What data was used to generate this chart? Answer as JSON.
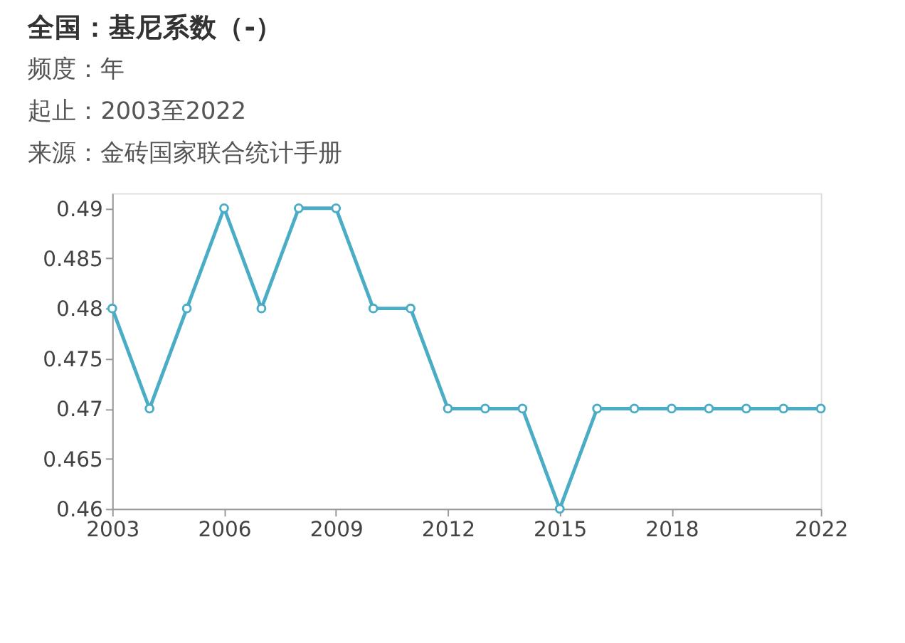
{
  "chart_data": {
    "type": "line",
    "title": "全国：基尼系数（-）",
    "subtitle": [
      "频度：年",
      "起止：2003至2022",
      "来源：金砖国家联合统计手册"
    ],
    "x": [
      2003,
      2004,
      2005,
      2006,
      2007,
      2008,
      2009,
      2010,
      2011,
      2012,
      2013,
      2014,
      2015,
      2016,
      2017,
      2018,
      2019,
      2020,
      2021,
      2022
    ],
    "series": [
      {
        "color": "#4aacc5",
        "values": [
          0.48,
          0.47,
          0.48,
          0.49,
          0.48,
          0.49,
          0.49,
          0.48,
          0.48,
          0.47,
          0.47,
          0.47,
          0.46,
          0.47,
          0.47,
          0.47,
          0.47,
          0.47,
          0.47,
          0.47
        ]
      }
    ],
    "xlim": [
      2003,
      2022
    ],
    "xticks": [
      2003,
      2006,
      2009,
      2012,
      2015,
      2018,
      2022
    ],
    "ylim": [
      0.46,
      0.4915
    ],
    "yticks": [
      0.46,
      0.465,
      0.47,
      0.475,
      0.48,
      0.485,
      0.49
    ],
    "grid": false,
    "marker": "circle",
    "line_style": "solid"
  }
}
